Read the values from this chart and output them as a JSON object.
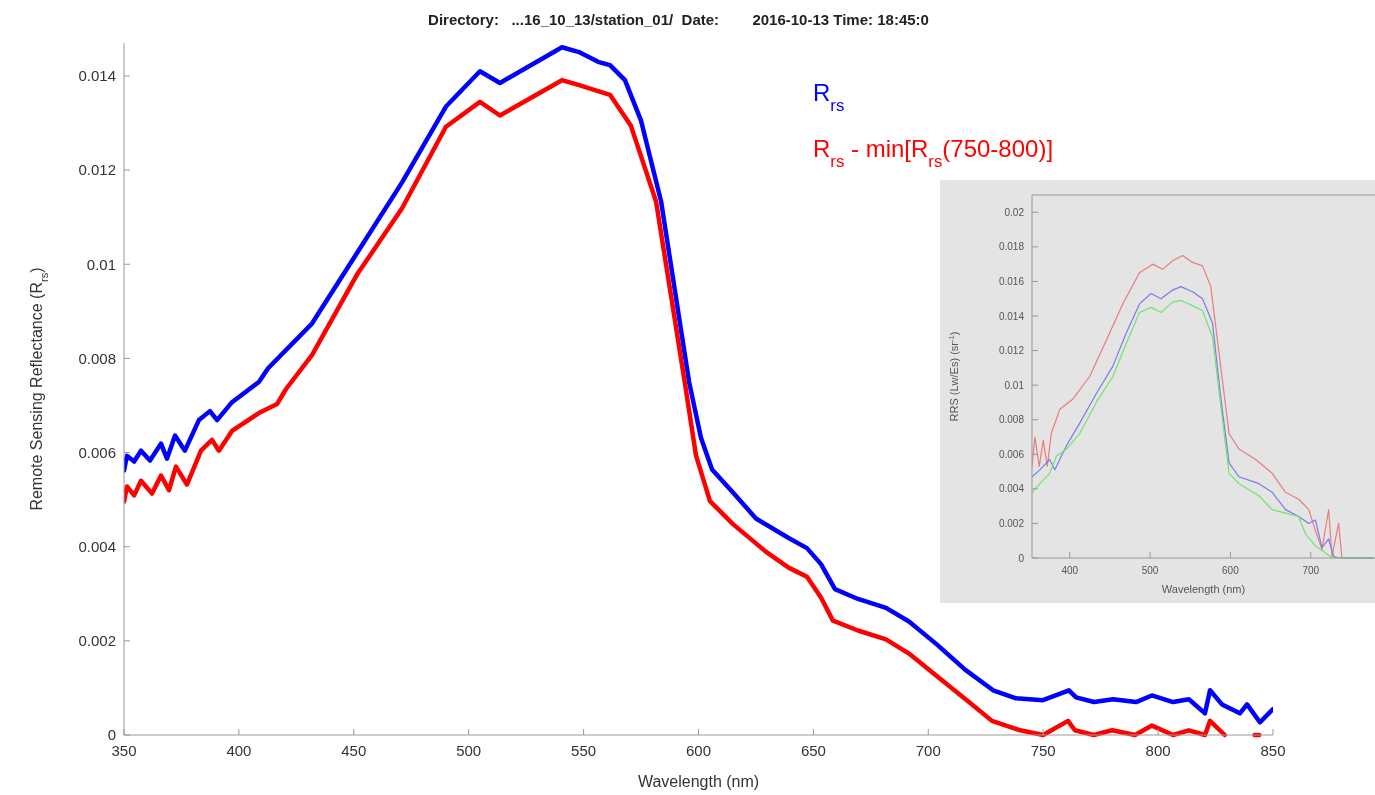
{
  "chart_data": [
    {
      "type": "line",
      "title": "Directory:   ...16_10_13/station_01/  Date:        2016-10-13 Time: 18:45:0",
      "xlabel": "Wavelength (nm)",
      "ylabel": "Remote Sensing Reflectance (R$_{rs}$)",
      "xlim": [
        350,
        850
      ],
      "ylim": [
        0,
        0.0147
      ],
      "xticks": [
        350,
        400,
        450,
        500,
        550,
        600,
        650,
        700,
        750,
        800,
        850
      ],
      "yticks": [
        0,
        0.002,
        0.004,
        0.006,
        0.008,
        0.01,
        0.012,
        0.014
      ],
      "legend": "top right",
      "series": [
        {
          "name": "R$_{rs}$",
          "color": "#0000ff",
          "x": [
            350,
            351.3,
            354.4,
            357.4,
            361.3,
            366.1,
            368.7,
            372.2,
            376.5,
            382.6,
            387.4,
            390.5,
            397,
            408.7,
            412.7,
            431.8,
            451.4,
            471,
            490.1,
            504.9,
            513.6,
            540.6,
            548.4,
            556.3,
            561.5,
            568,
            575,
            583.7,
            595.9,
            601.1,
            605.9,
            615,
            625,
            639.4,
            647.2,
            653.3,
            659.4,
            669.4,
            681.6,
            691.6,
            703.8,
            716,
            728.2,
            738.2,
            749.9,
            761.2,
            764.3,
            772.1,
            780.4,
            790.4,
            797.3,
            806.5,
            813.4,
            820.4,
            822.6,
            827.8,
            835.6,
            838.7,
            844.3,
            850
          ],
          "values": [
            0.00562,
            0.00593,
            0.00581,
            0.00604,
            0.00583,
            0.00619,
            0.00587,
            0.00636,
            0.00604,
            0.00669,
            0.00688,
            0.00669,
            0.00707,
            0.0075,
            0.00779,
            0.00874,
            0.01024,
            0.01174,
            0.01335,
            0.0141,
            0.01385,
            0.01461,
            0.0145,
            0.0143,
            0.01423,
            0.01391,
            0.01305,
            0.01134,
            0.0075,
            0.00631,
            0.00564,
            0.00515,
            0.0046,
            0.00418,
            0.00397,
            0.00363,
            0.0031,
            0.00289,
            0.0027,
            0.00241,
            0.00192,
            0.00139,
            0.00095,
            0.00078,
            0.00074,
            0.00095,
            0.0008,
            0.0007,
            0.00076,
            0.0007,
            0.00084,
            0.0007,
            0.00076,
            0.00046,
            0.00095,
            0.00065,
            0.00046,
            0.00065,
            0.00027,
            0.00055
          ]
        },
        {
          "name": "R$_{rs}$ - min[R$_{rs}$(750-800)]",
          "color": "#ff0000",
          "x": [
            350,
            351.3,
            354.4,
            357.4,
            362.2,
            366.1,
            369.6,
            372.6,
            377.4,
            383.5,
            388.3,
            391.3,
            397,
            408.7,
            416.6,
            420.5,
            431.8,
            451.4,
            471,
            490.1,
            504.9,
            513.6,
            540.6,
            548.4,
            561.5,
            570.6,
            581.5,
            594,
            598.9,
            605,
            615,
            629.4,
            639.4,
            647.2,
            653.3,
            658.5,
            669.4,
            681.6,
            691.6,
            703.8,
            717.7,
            727.7,
            740,
            750,
            760.8,
            763.8,
            772,
            780,
            790,
            797.3,
            806.5,
            813.4,
            820.4,
            822.6,
            829,
            836,
            842,
            844
          ],
          "values": [
            0.00496,
            0.00528,
            0.00509,
            0.0054,
            0.00513,
            0.00551,
            0.0052,
            0.0057,
            0.00532,
            0.00604,
            0.00627,
            0.00604,
            0.00646,
            0.00684,
            0.00703,
            0.00735,
            0.00807,
            0.00978,
            0.01119,
            0.01292,
            0.01345,
            0.01316,
            0.01391,
            0.0138,
            0.0136,
            0.01294,
            0.01134,
            0.0075,
            0.00594,
            0.00497,
            0.00448,
            0.00389,
            0.00355,
            0.00336,
            0.00292,
            0.00243,
            0.00222,
            0.00203,
            0.00173,
            0.00125,
            0.0007,
            0.0003,
            0.0001,
            0,
            0.0003,
            0.0001,
            0,
            0.0001,
            0,
            0.0002,
            0,
            0.0001,
            0,
            0.0003,
            0,
            null,
            0,
            0
          ]
        }
      ]
    },
    {
      "type": "line",
      "xlabel": "Wavelength (nm)",
      "ylabel": "RRS (Lw/Es) (sr$^{-1}$)",
      "xlim": [
        353,
        780
      ],
      "ylim": [
        0,
        0.021
      ],
      "xticks": [
        400,
        500,
        600,
        700
      ],
      "yticks": [
        0,
        0.002,
        0.004,
        0.006,
        0.008,
        0.01,
        0.012,
        0.014,
        0.016,
        0.018,
        0.02
      ],
      "series": [
        {
          "color": "#ec7b7b",
          "x": [
            353,
            356.6,
            362,
            367,
            372,
            377,
            387.6,
            404,
            424.8,
            445.5,
            466,
            486.8,
            503.3,
            515.7,
            528,
            540.5,
            552.9,
            565.3,
            575.6,
            586,
            598.3,
            610.7,
            631.4,
            652,
            668.6,
            685,
            697.5,
            705.8,
            714,
            722.3,
            726.4,
            734.7,
            738.8,
            778
          ],
          "values": [
            0.0053,
            0.007,
            0.0053,
            0.0068,
            0.0053,
            0.0072,
            0.0086,
            0.0092,
            0.0105,
            0.0126,
            0.0147,
            0.0165,
            0.017,
            0.0167,
            0.0172,
            0.0175,
            0.0171,
            0.0169,
            0.0157,
            0.0118,
            0.0072,
            0.0063,
            0.0057,
            0.0049,
            0.0038,
            0.0034,
            0.0028,
            0.0016,
            0.0005,
            0.0028,
            0.0001,
            0.002,
            0,
            0
          ]
        },
        {
          "color": "#7b7bec",
          "x": [
            353,
            362.8,
            375,
            381.4,
            395.9,
            412.4,
            433,
            453.7,
            470.2,
            486.8,
            501.2,
            513.6,
            528,
            538.4,
            552.9,
            565.3,
            577.7,
            588,
            598.3,
            610.7,
            635.5,
            652,
            668.6,
            685,
            697.5,
            705.8,
            714,
            722.3,
            728.5,
            734.7,
            778
          ],
          "values": [
            0.0047,
            0.0051,
            0.0057,
            0.0051,
            0.0065,
            0.0078,
            0.0095,
            0.0111,
            0.013,
            0.0147,
            0.0153,
            0.015,
            0.0155,
            0.0157,
            0.0154,
            0.015,
            0.0136,
            0.0093,
            0.0055,
            0.0047,
            0.0043,
            0.0038,
            0.0028,
            0.0024,
            0.002,
            0.0022,
            0.0006,
            0.0011,
            0.0001,
            0,
            0
          ]
        },
        {
          "color": "#6fe46f",
          "x": [
            353,
            362.8,
            375,
            383.5,
            395.9,
            412.4,
            433,
            453.7,
            470.2,
            486.8,
            501.2,
            513.6,
            528,
            538.4,
            552.9,
            565.3,
            577.7,
            588,
            598.3,
            610.7,
            635.5,
            652,
            668.6,
            685,
            693.4,
            705.8,
            718.2,
            726.4,
            778
          ],
          "values": [
            0.0038,
            0.0043,
            0.0049,
            0.0059,
            0.0063,
            0.0072,
            0.009,
            0.0105,
            0.0124,
            0.0142,
            0.0145,
            0.0142,
            0.0148,
            0.0149,
            0.0146,
            0.0143,
            0.0128,
            0.0088,
            0.0049,
            0.0043,
            0.0036,
            0.0028,
            0.0026,
            0.0024,
            0.0014,
            0.0007,
            0.0003,
            0,
            0
          ]
        }
      ]
    }
  ]
}
